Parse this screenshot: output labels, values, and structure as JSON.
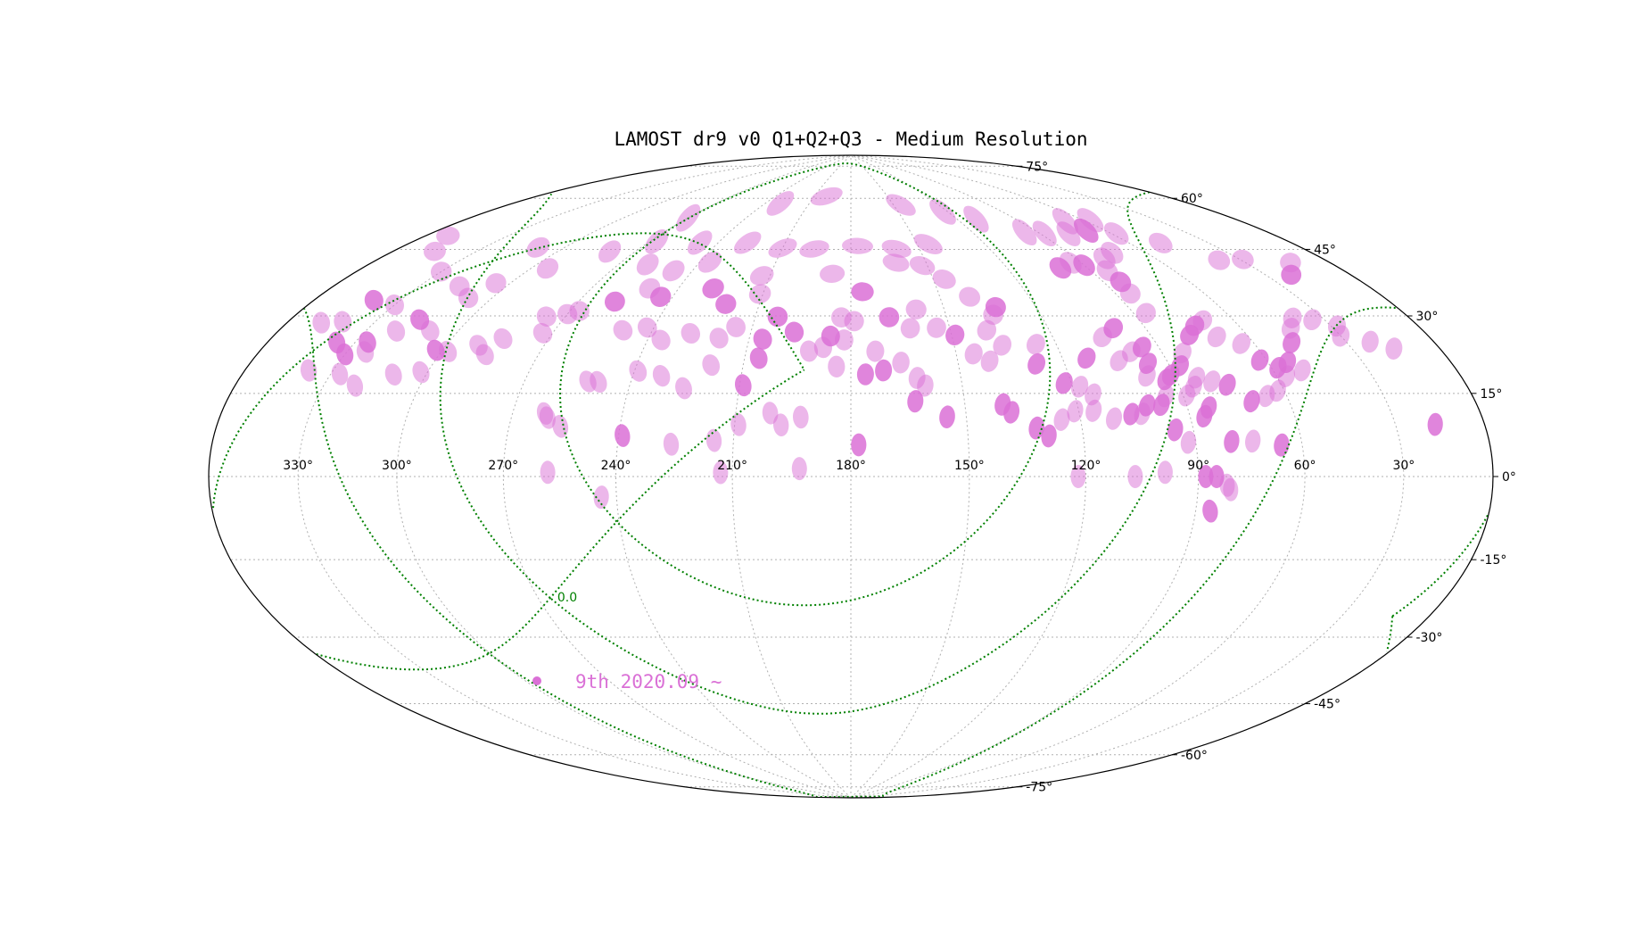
{
  "chart_data": {
    "type": "scatter",
    "projection": "aitoff-hammer",
    "title": "LAMOST dr9 v0 Q1+Q2+Q3 - Medium Resolution",
    "xlabel": "",
    "ylabel": "",
    "grid": true,
    "x_reversed": true,
    "xlim": [
      0,
      360
    ],
    "ylim": [
      -90,
      90
    ],
    "lon_tick_labels": [
      {
        "value": 330,
        "label": "330°"
      },
      {
        "value": 300,
        "label": "300°"
      },
      {
        "value": 270,
        "label": "270°"
      },
      {
        "value": 240,
        "label": "240°"
      },
      {
        "value": 210,
        "label": "210°"
      },
      {
        "value": 180,
        "label": "180°"
      },
      {
        "value": 150,
        "label": "150°"
      },
      {
        "value": 120,
        "label": "120°"
      },
      {
        "value": 90,
        "label": "90°"
      },
      {
        "value": 60,
        "label": "60°"
      },
      {
        "value": 30,
        "label": "30°"
      }
    ],
    "lat_tick_labels": [
      {
        "value": 75,
        "label": "75°"
      },
      {
        "value": 60,
        "label": "60°"
      },
      {
        "value": 45,
        "label": "45°"
      },
      {
        "value": 30,
        "label": "30°"
      },
      {
        "value": 15,
        "label": "15°"
      },
      {
        "value": 0,
        "label": "0°"
      },
      {
        "value": -15,
        "label": "-15°"
      },
      {
        "value": -30,
        "label": "-30°"
      },
      {
        "value": -45,
        "label": "-45°"
      },
      {
        "value": -60,
        "label": "-60°"
      },
      {
        "value": -75,
        "label": "-75°"
      }
    ],
    "legend": {
      "label": "9th 2020.09 ~",
      "placement": "lower-left",
      "color": "#da70d6"
    },
    "galactic_curve_label": "0.0",
    "colors": {
      "fields": "#da70d6",
      "galactic": "#008000",
      "grid": "#b0b0b0",
      "frame": "#000000"
    },
    "series": [
      {
        "name": "9th 2020.09 ~",
        "points": [
          [
            178,
            8
          ],
          [
            171,
            27
          ],
          [
            162,
            25
          ],
          [
            160,
            23
          ],
          [
            176,
            26
          ],
          [
            184,
            28
          ],
          [
            183,
            41
          ],
          [
            188,
            33
          ],
          [
            193,
            15
          ],
          [
            198,
            13
          ],
          [
            201,
            16
          ],
          [
            209,
            13
          ],
          [
            213,
            1
          ],
          [
            209,
            23
          ],
          [
            206,
            30
          ],
          [
            206,
            35
          ],
          [
            203,
            41
          ],
          [
            197,
            37
          ],
          [
            192,
            32
          ],
          [
            186,
            36
          ],
          [
            182,
            35
          ],
          [
            176,
            48
          ],
          [
            179,
            40
          ],
          [
            173,
            32
          ],
          [
            168,
            41
          ],
          [
            162,
            38
          ],
          [
            159,
            43
          ],
          [
            154,
            38
          ],
          [
            149,
            36
          ],
          [
            145,
            31
          ],
          [
            141,
            29
          ],
          [
            136,
            33
          ],
          [
            139,
            37
          ],
          [
            135,
            41
          ],
          [
            133,
            43
          ],
          [
            126,
            33
          ],
          [
            128,
            28
          ],
          [
            122,
            23
          ],
          [
            118,
            22
          ],
          [
            115,
            20
          ],
          [
            113,
            29
          ],
          [
            105,
            34
          ],
          [
            104,
            28
          ],
          [
            100,
            36
          ],
          [
            99,
            30
          ],
          [
            96,
            27
          ],
          [
            95,
            31
          ],
          [
            98,
            24
          ],
          [
            93,
            23
          ],
          [
            89,
            19
          ],
          [
            86,
            14
          ],
          [
            84,
            16
          ],
          [
            95,
            11
          ],
          [
            92,
            8
          ],
          [
            80,
            8
          ],
          [
            74,
            8
          ],
          [
            66,
            7
          ],
          [
            122,
            0
          ],
          [
            107,
            0
          ],
          [
            99,
            1
          ],
          [
            88,
            0
          ],
          [
            85,
            0
          ],
          [
            82,
            -2
          ],
          [
            81,
            -3
          ],
          [
            86,
            -8
          ],
          [
            193,
            2
          ],
          [
            215,
            9
          ],
          [
            226,
            8
          ],
          [
            239,
            10
          ],
          [
            244,
            -5
          ],
          [
            258,
            1
          ],
          [
            260,
            14
          ],
          [
            261,
            15
          ],
          [
            256,
            12
          ],
          [
            249,
            23
          ],
          [
            239,
            26
          ],
          [
            232,
            25
          ],
          [
            252,
            23
          ],
          [
            219,
            28
          ],
          [
            225,
            22
          ],
          [
            211,
            47
          ],
          [
            221,
            44
          ],
          [
            228,
            48
          ],
          [
            244,
            45
          ],
          [
            250,
            47
          ],
          [
            258,
            43
          ],
          [
            267,
            40
          ],
          [
            270,
            39
          ],
          [
            276,
            38
          ],
          [
            273,
            34
          ],
          [
            284,
            32
          ],
          [
            290,
            30
          ],
          [
            286,
            28
          ],
          [
            298,
            28
          ],
          [
            302,
            28
          ],
          [
            309,
            32
          ],
          [
            316,
            34
          ],
          [
            320,
            31
          ],
          [
            326,
            28
          ],
          [
            324,
            26
          ],
          [
            330,
            25
          ],
          [
            336,
            27
          ],
          [
            341,
            31
          ],
          [
            339,
            36
          ],
          [
            330,
            36
          ],
          [
            348,
            30
          ],
          [
            320,
            19
          ],
          [
            327,
            21
          ],
          [
            338,
            21
          ],
          [
            310,
            22
          ],
          [
            302,
            23
          ],
          [
            242,
            37
          ],
          [
            249,
            36
          ],
          [
            219,
            35
          ],
          [
            215,
            38
          ],
          [
            228,
            36
          ],
          [
            236,
            34
          ],
          [
            166,
            29
          ],
          [
            163,
            19
          ],
          [
            155,
            15
          ],
          [
            140,
            18
          ],
          [
            138,
            16
          ],
          [
            132,
            12
          ],
          [
            129,
            10
          ],
          [
            125,
            14
          ],
          [
            121,
            16
          ],
          [
            116,
            16
          ],
          [
            111,
            14
          ],
          [
            106,
            15
          ],
          [
            103,
            15
          ],
          [
            101,
            17
          ],
          [
            97,
            17
          ],
          [
            95,
            19
          ],
          [
            91,
            24
          ],
          [
            87,
            26
          ],
          [
            84,
            29
          ],
          [
            78,
            33
          ],
          [
            74,
            35
          ],
          [
            70,
            36
          ],
          [
            70,
            32
          ],
          [
            64,
            30
          ],
          [
            62,
            26
          ],
          [
            58,
            24
          ],
          [
            54,
            25
          ],
          [
            48,
            29
          ],
          [
            44,
            32
          ],
          [
            40,
            34
          ],
          [
            34,
            33
          ],
          [
            28,
            31
          ],
          [
            30,
            29
          ],
          [
            22,
            27
          ],
          [
            16,
            25
          ],
          [
            17,
            10
          ],
          [
            51,
            23
          ],
          [
            57,
            22
          ],
          [
            62,
            19
          ],
          [
            66,
            18
          ],
          [
            71,
            17
          ],
          [
            76,
            21
          ],
          [
            80,
            22
          ],
          [
            84,
            23
          ],
          [
            86,
            21
          ],
          [
            86,
            39
          ],
          [
            85,
            44
          ],
          [
            84,
            47
          ],
          [
            84,
            50
          ],
          [
            90,
            52
          ],
          [
            94,
            53
          ],
          [
            100,
            52
          ],
          [
            79,
            53
          ],
          [
            73,
            54
          ],
          [
            68,
            60
          ],
          [
            58,
            58
          ],
          [
            48,
            54
          ],
          [
            38,
            48
          ],
          [
            29,
            47
          ],
          [
            21,
            42
          ],
          [
            14,
            44
          ],
          [
            145,
            61
          ],
          [
            160,
            60
          ],
          [
            177,
            61
          ],
          [
            196,
            60
          ],
          [
            210,
            60
          ],
          [
            227,
            61
          ],
          [
            248,
            60
          ],
          [
            267,
            59
          ],
          [
            280,
            55
          ],
          [
            294,
            49
          ],
          [
            305,
            44
          ],
          [
            308,
            40
          ],
          [
            316,
            42
          ],
          [
            330,
            44
          ],
          [
            345,
            47
          ],
          [
            352,
            50
          ],
          [
            310,
            53
          ],
          [
            270,
            66
          ],
          [
            230,
            73
          ],
          [
            200,
            76
          ],
          [
            145,
            73
          ],
          [
            123,
            70
          ],
          [
            110,
            67
          ],
          [
            96,
            62
          ],
          [
            88,
            61
          ],
          [
            78,
            60
          ],
          [
            69,
            63
          ],
          [
            57,
            62
          ],
          [
            213,
            52
          ],
          [
            236,
            55
          ],
          [
            247,
            52
          ],
          [
            259,
            53
          ],
          [
            187,
            53
          ],
          [
            162,
            56
          ],
          [
            152,
            55
          ],
          [
            146,
            51
          ],
          [
            140,
            46
          ]
        ],
        "strong_points": [
          [
            171,
            27
          ],
          [
            176,
            26
          ],
          [
            168,
            41
          ],
          [
            149,
            36
          ],
          [
            133,
            43
          ],
          [
            128,
            28
          ],
          [
            122,
            23
          ],
          [
            113,
            29
          ],
          [
            100,
            36
          ],
          [
            96,
            27
          ],
          [
            95,
            31
          ],
          [
            93,
            23
          ],
          [
            86,
            14
          ],
          [
            84,
            16
          ],
          [
            95,
            11
          ],
          [
            80,
            8
          ],
          [
            66,
            7
          ],
          [
            88,
            0
          ],
          [
            85,
            0
          ],
          [
            86,
            -8
          ],
          [
            178,
            8
          ],
          [
            209,
            23
          ],
          [
            206,
            35
          ],
          [
            197,
            37
          ],
          [
            186,
            36
          ],
          [
            176,
            48
          ],
          [
            203,
            41
          ],
          [
            206,
            30
          ],
          [
            221,
            44
          ],
          [
            228,
            48
          ],
          [
            258,
            43
          ],
          [
            244,
            45
          ],
          [
            302,
            28
          ],
          [
            316,
            34
          ],
          [
            330,
            25
          ],
          [
            326,
            28
          ],
          [
            336,
            27
          ],
          [
            339,
            36
          ],
          [
            17,
            10
          ],
          [
            62,
            26
          ],
          [
            58,
            24
          ],
          [
            54,
            25
          ],
          [
            48,
            29
          ],
          [
            78,
            33
          ],
          [
            74,
            35
          ],
          [
            90,
            52
          ],
          [
            100,
            52
          ],
          [
            84,
            47
          ],
          [
            21,
            42
          ],
          [
            68,
            60
          ],
          [
            163,
            19
          ],
          [
            155,
            15
          ],
          [
            140,
            18
          ],
          [
            138,
            16
          ],
          [
            132,
            12
          ],
          [
            129,
            10
          ],
          [
            106,
            15
          ],
          [
            101,
            17
          ],
          [
            97,
            17
          ],
          [
            91,
            24
          ],
          [
            87,
            26
          ],
          [
            76,
            21
          ],
          [
            71,
            17
          ],
          [
            239,
            10
          ]
        ]
      }
    ]
  }
}
